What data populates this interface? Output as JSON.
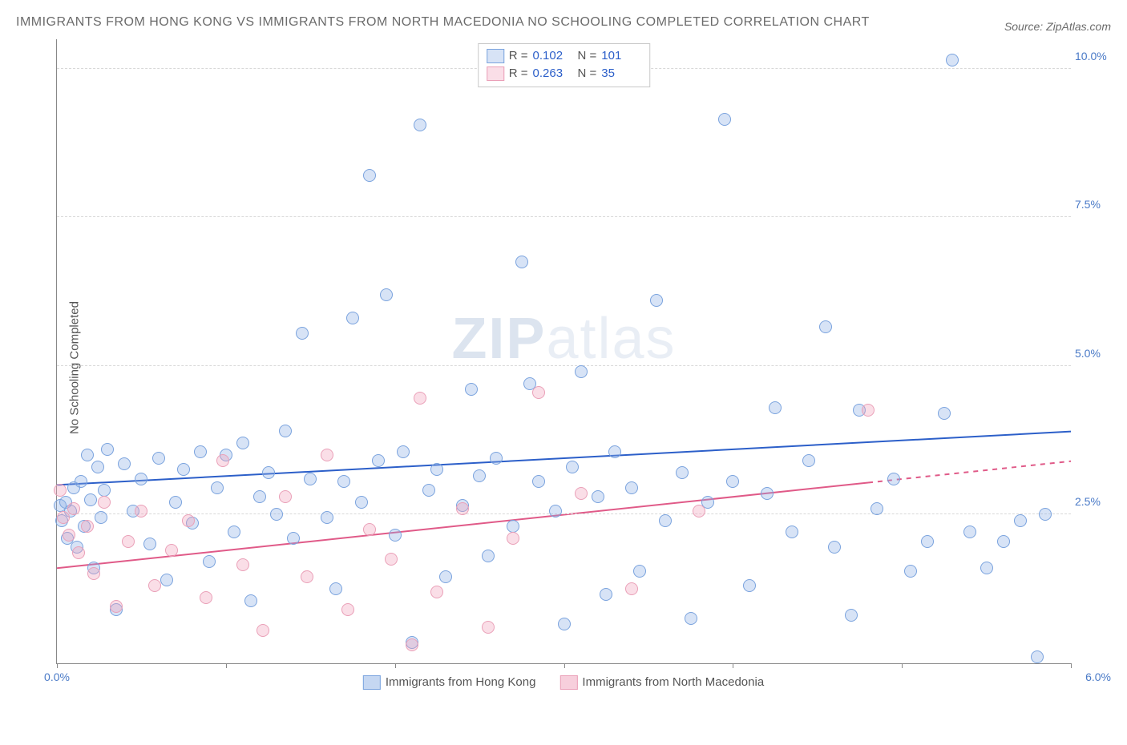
{
  "title": "IMMIGRANTS FROM HONG KONG VS IMMIGRANTS FROM NORTH MACEDONIA NO SCHOOLING COMPLETED CORRELATION CHART",
  "source": "Source: ZipAtlas.com",
  "watermark_a": "ZIP",
  "watermark_b": "atlas",
  "chart": {
    "type": "scatter",
    "ylabel": "No Schooling Completed",
    "xlim": [
      0,
      6
    ],
    "ylim": [
      0,
      10.5
    ],
    "yticks": [
      2.5,
      5.0,
      7.5,
      10.0
    ],
    "ytick_labels": [
      "2.5%",
      "5.0%",
      "7.5%",
      "10.0%"
    ],
    "xticks": [
      0,
      1,
      2,
      3,
      4,
      5,
      6
    ],
    "xtick_left_label": "0.0%",
    "xtick_right_label": "6.0%",
    "grid_color": "#d8d8d8",
    "axis_color": "#888888",
    "tick_label_color": "#4a7ac7",
    "background_color": "#ffffff",
    "marker_radius": 8,
    "marker_stroke": 1.5,
    "series": [
      {
        "name": "Immigrants from Hong Kong",
        "fill": "rgba(140,175,230,0.35)",
        "stroke": "#7aa3de",
        "trend_color": "#2c5fc9",
        "trend_width": 2,
        "R": "0.102",
        "N": "101",
        "trend": {
          "y_at_x0": 3.0,
          "y_at_x6": 3.9,
          "dash_after": null
        },
        "points": [
          [
            0.02,
            2.65
          ],
          [
            0.03,
            2.4
          ],
          [
            0.05,
            2.7
          ],
          [
            0.06,
            2.1
          ],
          [
            0.08,
            2.55
          ],
          [
            0.1,
            2.95
          ],
          [
            0.12,
            1.95
          ],
          [
            0.14,
            3.05
          ],
          [
            0.16,
            2.3
          ],
          [
            0.18,
            3.5
          ],
          [
            0.2,
            2.75
          ],
          [
            0.22,
            1.6
          ],
          [
            0.24,
            3.3
          ],
          [
            0.26,
            2.45
          ],
          [
            0.28,
            2.9
          ],
          [
            0.3,
            3.6
          ],
          [
            0.35,
            0.9
          ],
          [
            0.4,
            3.35
          ],
          [
            0.45,
            2.55
          ],
          [
            0.5,
            3.1
          ],
          [
            0.55,
            2.0
          ],
          [
            0.6,
            3.45
          ],
          [
            0.65,
            1.4
          ],
          [
            0.7,
            2.7
          ],
          [
            0.75,
            3.25
          ],
          [
            0.8,
            2.35
          ],
          [
            0.85,
            3.55
          ],
          [
            0.9,
            1.7
          ],
          [
            0.95,
            2.95
          ],
          [
            1.0,
            3.5
          ],
          [
            1.05,
            2.2
          ],
          [
            1.1,
            3.7
          ],
          [
            1.15,
            1.05
          ],
          [
            1.2,
            2.8
          ],
          [
            1.25,
            3.2
          ],
          [
            1.3,
            2.5
          ],
          [
            1.35,
            3.9
          ],
          [
            1.4,
            2.1
          ],
          [
            1.45,
            5.55
          ],
          [
            1.5,
            3.1
          ],
          [
            1.6,
            2.45
          ],
          [
            1.65,
            1.25
          ],
          [
            1.7,
            3.05
          ],
          [
            1.75,
            5.8
          ],
          [
            1.8,
            2.7
          ],
          [
            1.85,
            8.2
          ],
          [
            1.9,
            3.4
          ],
          [
            1.95,
            6.2
          ],
          [
            2.0,
            2.15
          ],
          [
            2.05,
            3.55
          ],
          [
            2.1,
            0.35
          ],
          [
            2.15,
            9.05
          ],
          [
            2.2,
            2.9
          ],
          [
            2.25,
            3.25
          ],
          [
            2.3,
            1.45
          ],
          [
            2.4,
            2.65
          ],
          [
            2.45,
            4.6
          ],
          [
            2.5,
            3.15
          ],
          [
            2.55,
            1.8
          ],
          [
            2.6,
            3.45
          ],
          [
            2.7,
            2.3
          ],
          [
            2.75,
            6.75
          ],
          [
            2.8,
            4.7
          ],
          [
            2.85,
            3.05
          ],
          [
            2.95,
            2.55
          ],
          [
            3.0,
            0.65
          ],
          [
            3.05,
            3.3
          ],
          [
            3.1,
            4.9
          ],
          [
            3.2,
            2.8
          ],
          [
            3.25,
            1.15
          ],
          [
            3.3,
            3.55
          ],
          [
            3.4,
            2.95
          ],
          [
            3.45,
            1.55
          ],
          [
            3.55,
            6.1
          ],
          [
            3.6,
            2.4
          ],
          [
            3.7,
            3.2
          ],
          [
            3.75,
            0.75
          ],
          [
            3.85,
            2.7
          ],
          [
            3.95,
            9.15
          ],
          [
            4.0,
            3.05
          ],
          [
            4.1,
            1.3
          ],
          [
            4.2,
            2.85
          ],
          [
            4.25,
            4.3
          ],
          [
            4.35,
            2.2
          ],
          [
            4.45,
            3.4
          ],
          [
            4.55,
            5.65
          ],
          [
            4.6,
            1.95
          ],
          [
            4.7,
            0.8
          ],
          [
            4.75,
            4.25
          ],
          [
            4.85,
            2.6
          ],
          [
            4.95,
            3.1
          ],
          [
            5.05,
            1.55
          ],
          [
            5.15,
            2.05
          ],
          [
            5.25,
            4.2
          ],
          [
            5.3,
            10.15
          ],
          [
            5.4,
            2.2
          ],
          [
            5.5,
            1.6
          ],
          [
            5.6,
            2.05
          ],
          [
            5.7,
            2.4
          ],
          [
            5.8,
            0.1
          ],
          [
            5.85,
            2.5
          ]
        ]
      },
      {
        "name": "Immigrants from North Macedonia",
        "fill": "rgba(240,160,185,0.35)",
        "stroke": "#eaa0b8",
        "trend_color": "#e05a88",
        "trend_width": 2,
        "R": "0.263",
        "N": "35",
        "trend": {
          "y_at_x0": 1.6,
          "y_at_x6": 3.4,
          "dash_after": 4.8
        },
        "points": [
          [
            0.02,
            2.9
          ],
          [
            0.04,
            2.45
          ],
          [
            0.07,
            2.15
          ],
          [
            0.1,
            2.6
          ],
          [
            0.13,
            1.85
          ],
          [
            0.18,
            2.3
          ],
          [
            0.22,
            1.5
          ],
          [
            0.28,
            2.7
          ],
          [
            0.35,
            0.95
          ],
          [
            0.42,
            2.05
          ],
          [
            0.5,
            2.55
          ],
          [
            0.58,
            1.3
          ],
          [
            0.68,
            1.9
          ],
          [
            0.78,
            2.4
          ],
          [
            0.88,
            1.1
          ],
          [
            0.98,
            3.4
          ],
          [
            1.1,
            1.65
          ],
          [
            1.22,
            0.55
          ],
          [
            1.35,
            2.8
          ],
          [
            1.48,
            1.45
          ],
          [
            1.6,
            3.5
          ],
          [
            1.72,
            0.9
          ],
          [
            1.85,
            2.25
          ],
          [
            1.98,
            1.75
          ],
          [
            2.1,
            0.3
          ],
          [
            2.15,
            4.45
          ],
          [
            2.25,
            1.2
          ],
          [
            2.4,
            2.6
          ],
          [
            2.55,
            0.6
          ],
          [
            2.7,
            2.1
          ],
          [
            2.85,
            4.55
          ],
          [
            3.1,
            2.85
          ],
          [
            3.4,
            1.25
          ],
          [
            3.8,
            2.55
          ],
          [
            4.8,
            4.25
          ]
        ]
      }
    ],
    "bottom_legend": [
      {
        "label": "Immigrants from Hong Kong",
        "fill": "rgba(140,175,230,0.5)",
        "stroke": "#7aa3de"
      },
      {
        "label": "Immigrants from North Macedonia",
        "fill": "rgba(240,160,185,0.5)",
        "stroke": "#eaa0b8"
      }
    ]
  }
}
